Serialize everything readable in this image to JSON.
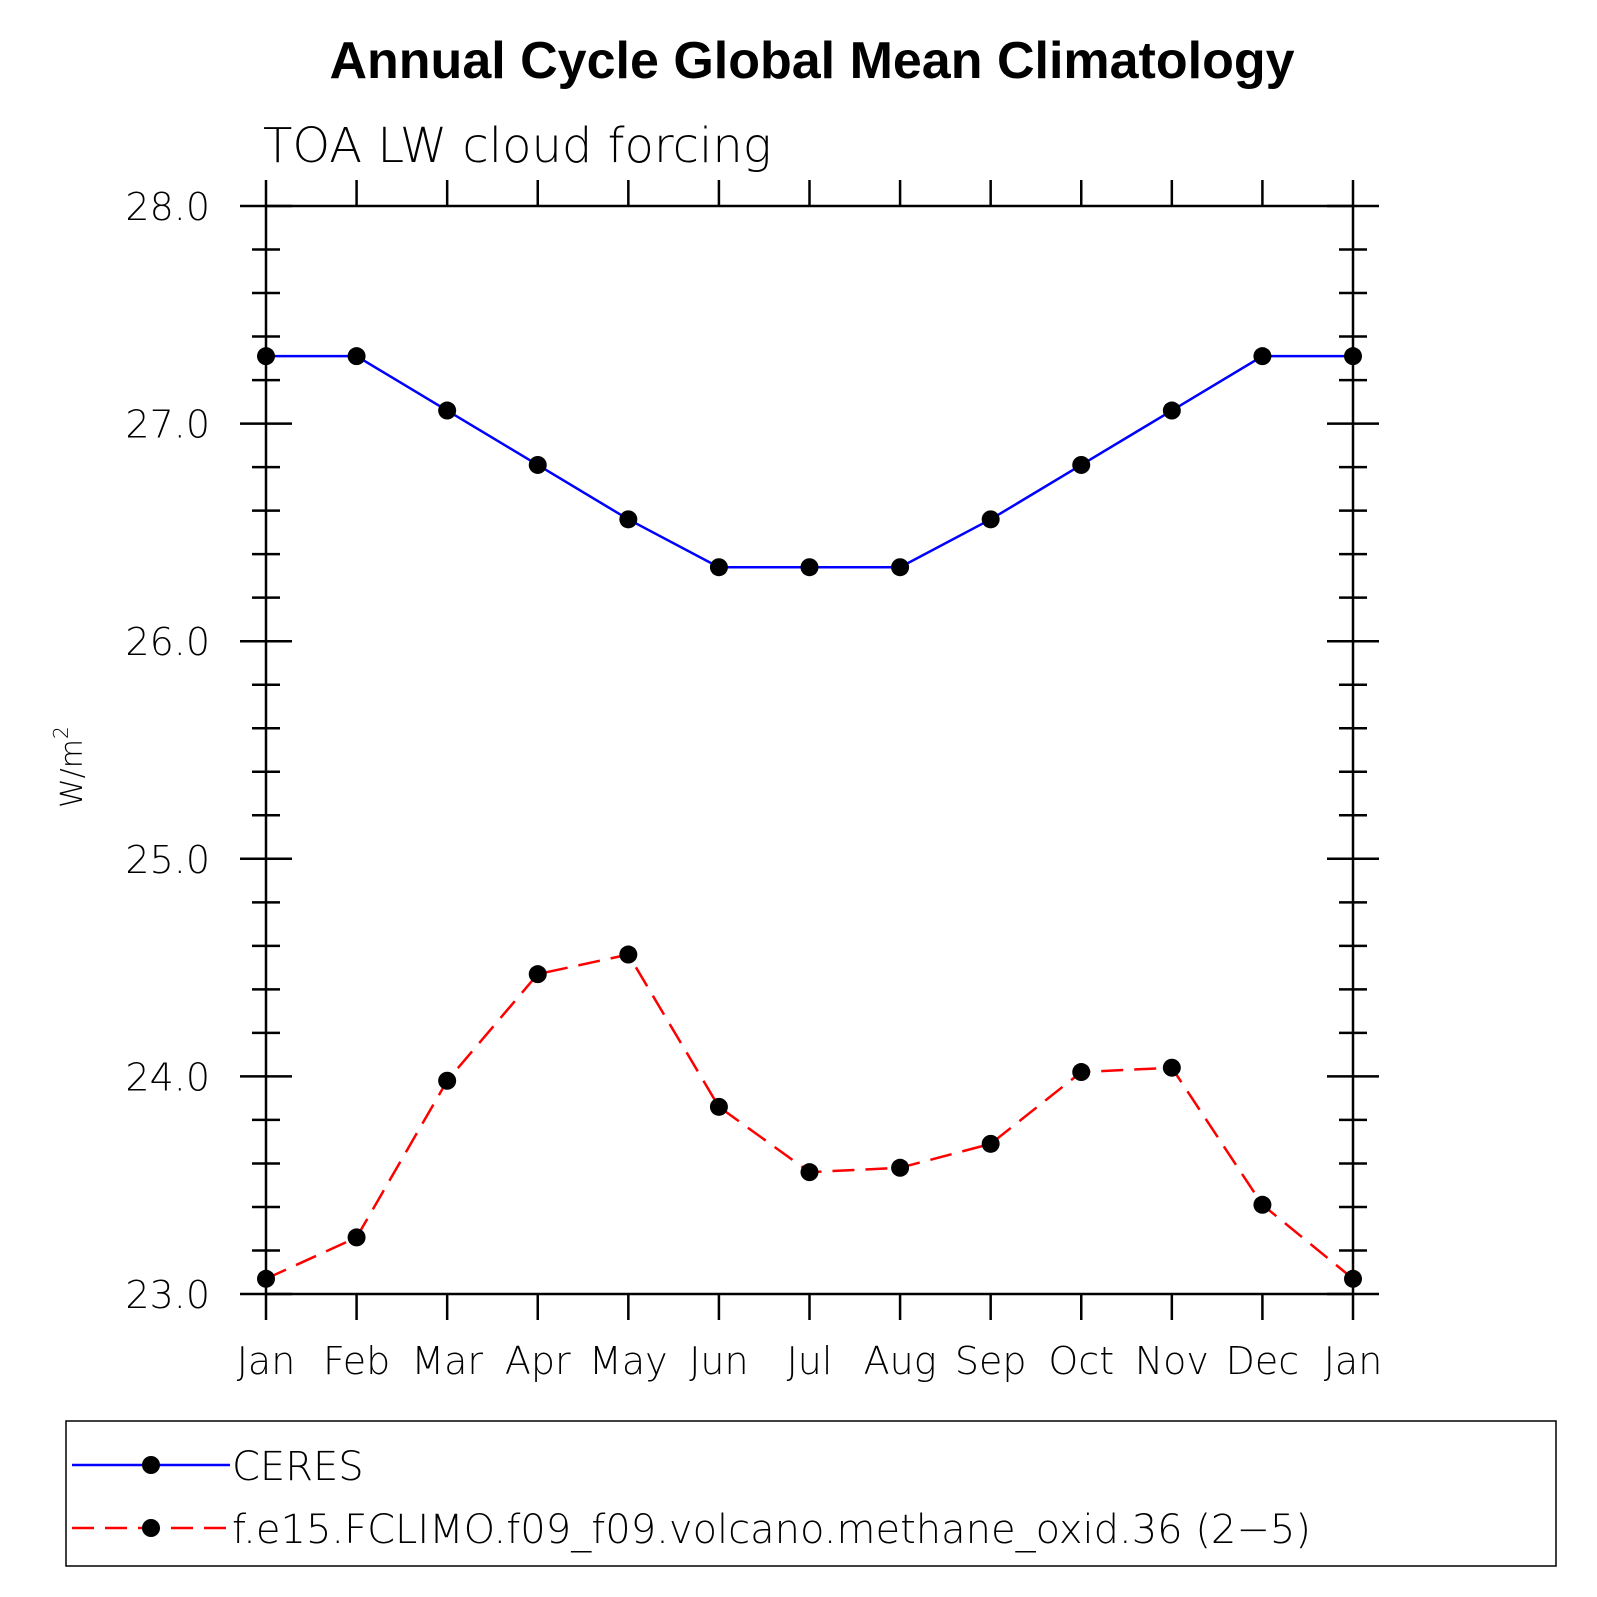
{
  "chart_data": {
    "type": "line",
    "title": "Annual Cycle Global Mean Climatology",
    "subtitle": "TOA LW cloud forcing",
    "ylabel": "W/m",
    "ylabel_superscript": "2",
    "xlabel": "",
    "categories": [
      "Jan",
      "Feb",
      "Mar",
      "Apr",
      "May",
      "Jun",
      "Jul",
      "Aug",
      "Sep",
      "Oct",
      "Nov",
      "Dec",
      "Jan"
    ],
    "ylim": [
      23.0,
      28.0
    ],
    "yticks": [
      23.0,
      24.0,
      25.0,
      26.0,
      27.0,
      28.0
    ],
    "ytick_labels": [
      "23.0",
      "24.0",
      "25.0",
      "26.0",
      "27.0",
      "28.0"
    ],
    "y_minor_step": 0.2,
    "series": [
      {
        "name": "CERES",
        "color": "#0000ff",
        "dash": "solid",
        "values": [
          27.31,
          27.31,
          27.06,
          26.81,
          26.56,
          26.34,
          26.34,
          26.34,
          26.56,
          26.81,
          27.06,
          27.31,
          27.31
        ]
      },
      {
        "name": "f.e15.FCLIMO.f09_f09.volcano.methane_oxid.36 (2−5)",
        "color": "#ff0000",
        "dash": "dashed",
        "values": [
          23.07,
          23.26,
          23.98,
          24.47,
          24.56,
          23.86,
          23.56,
          23.58,
          23.69,
          24.02,
          24.04,
          23.41,
          23.07
        ]
      }
    ],
    "legend_position": "bottom"
  }
}
